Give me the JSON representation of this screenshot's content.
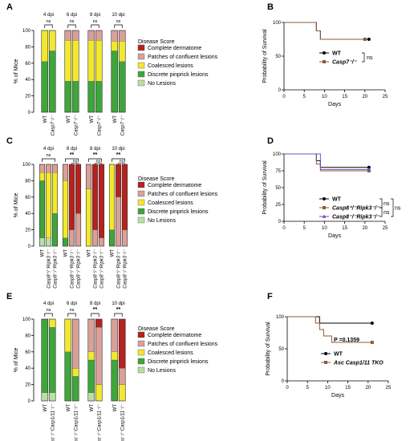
{
  "figure": {
    "panel_labels": [
      "A",
      "B",
      "C",
      "D",
      "E",
      "F"
    ]
  },
  "colors": {
    "No Lesions": "#b8e0a8",
    "Discrete pinprick lesions": "#3ea63a",
    "Coalesced lesions": "#f2e82e",
    "Patches of confluent lesions": "#d9a09a",
    "Complete dermatome": "#b5221f",
    "wt_line": "#000000",
    "ko_line": "#8b5a3c",
    "ripk3_line": "#6a4fc8"
  },
  "chart_data": [
    {
      "type": "bar",
      "panel": "A",
      "stacked": true,
      "ylabel": "% of Mice",
      "ylim": [
        0,
        100
      ],
      "yticks": [
        0,
        20,
        40,
        60,
        80,
        100
      ],
      "legend_title": "Disease Score",
      "legend": [
        "Complete dermatome",
        "Patches of confluent lesions",
        "Coalesced lesions",
        "Discrete pinprick lesions",
        "No Lesions"
      ],
      "groups": [
        {
          "label": "4 dpi",
          "sig": "ns",
          "bars": [
            {
              "label": "WT",
              "segments": {
                "No Lesions": 0,
                "Discrete pinprick lesions": 62,
                "Coalesced lesions": 38,
                "Patches of confluent lesions": 0,
                "Complete dermatome": 0
              }
            },
            {
              "label": "Casp7⁻/⁻",
              "segments": {
                "No Lesions": 0,
                "Discrete pinprick lesions": 75,
                "Coalesced lesions": 25,
                "Patches of confluent lesions": 0,
                "Complete dermatome": 0
              }
            }
          ]
        },
        {
          "label": "6 dpi",
          "sig": "ns",
          "bars": [
            {
              "label": "WT",
              "segments": {
                "No Lesions": 0,
                "Discrete pinprick lesions": 38,
                "Coalesced lesions": 50,
                "Patches of confluent lesions": 12,
                "Complete dermatome": 0
              }
            },
            {
              "label": "Casp7⁻/⁻",
              "segments": {
                "No Lesions": 0,
                "Discrete pinprick lesions": 38,
                "Coalesced lesions": 50,
                "Patches of confluent lesions": 12,
                "Complete dermatome": 0
              }
            }
          ]
        },
        {
          "label": "8 dpi",
          "sig": "ns",
          "bars": [
            {
              "label": "WT",
              "segments": {
                "No Lesions": 0,
                "Discrete pinprick lesions": 38,
                "Coalesced lesions": 50,
                "Patches of confluent lesions": 12,
                "Complete dermatome": 0
              }
            },
            {
              "label": "Casp7⁻/⁻",
              "segments": {
                "No Lesions": 0,
                "Discrete pinprick lesions": 38,
                "Coalesced lesions": 50,
                "Patches of confluent lesions": 12,
                "Complete dermatome": 0
              }
            }
          ]
        },
        {
          "label": "10 dpi",
          "sig": "ns",
          "bars": [
            {
              "label": "WT",
              "segments": {
                "No Lesions": 0,
                "Discrete pinprick lesions": 75,
                "Coalesced lesions": 12,
                "Patches of confluent lesions": 13,
                "Complete dermatome": 0
              }
            },
            {
              "label": "Casp7⁻/⁻",
              "segments": {
                "No Lesions": 0,
                "Discrete pinprick lesions": 62,
                "Coalesced lesions": 25,
                "Patches of confluent lesions": 13,
                "Complete dermatome": 0
              }
            }
          ]
        }
      ]
    },
    {
      "type": "line",
      "panel": "B",
      "step": true,
      "xlabel": "Days",
      "ylabel": "Probability of Survival",
      "xlim": [
        0,
        25
      ],
      "ylim": [
        0,
        100
      ],
      "xticks": [
        0,
        5,
        10,
        15,
        20,
        25
      ],
      "yticks": [
        0,
        50,
        100
      ],
      "legend_location": "center-right",
      "sig": "ns",
      "series": [
        {
          "name": "WT",
          "color_key": "wt_line",
          "marker": "circle",
          "x": [
            0,
            8,
            9,
            21
          ],
          "y": [
            100,
            87.5,
            75,
            75
          ]
        },
        {
          "name": "Casp7⁻/⁻",
          "color_key": "ko_line",
          "marker": "square",
          "x": [
            0,
            8,
            9,
            20
          ],
          "y": [
            100,
            87.5,
            75,
            75
          ]
        }
      ]
    },
    {
      "type": "bar",
      "panel": "C",
      "stacked": true,
      "ylabel": "% of Mice",
      "ylim": [
        0,
        100
      ],
      "yticks": [
        0,
        20,
        40,
        60,
        80,
        100
      ],
      "legend_title": "Disease Score",
      "legend": [
        "Complete dermatome",
        "Patches of confluent lesions",
        "Coalesced lesions",
        "Discrete pinprick lesions",
        "No Lesions"
      ],
      "groups": [
        {
          "label": "4 dpi",
          "sig": "ns",
          "bars": [
            {
              "label": "WT",
              "segments": {
                "No Lesions": 10,
                "Discrete pinprick lesions": 70,
                "Coalesced lesions": 10,
                "Patches of confluent lesions": 10,
                "Complete dermatome": 0
              }
            },
            {
              "label": "Casp8⁺/⁻Ripk3⁻/⁻",
              "segments": {
                "No Lesions": 10,
                "Discrete pinprick lesions": 0,
                "Coalesced lesions": 80,
                "Patches of confluent lesions": 10,
                "Complete dermatome": 0
              }
            },
            {
              "label": "Casp8⁻/⁻Ripk3⁻/⁻",
              "segments": {
                "No Lesions": 0,
                "Discrete pinprick lesions": 40,
                "Coalesced lesions": 50,
                "Patches of confluent lesions": 10,
                "Complete dermatome": 0
              }
            }
          ]
        },
        {
          "label": "6 dpi",
          "sig": "**",
          "sig2": "ns",
          "bars": [
            {
              "label": "WT",
              "segments": {
                "No Lesions": 0,
                "Discrete pinprick lesions": 10,
                "Coalesced lesions": 70,
                "Patches of confluent lesions": 20,
                "Complete dermatome": 0
              }
            },
            {
              "label": "Casp8⁺/⁻Ripk3⁻/⁻",
              "segments": {
                "No Lesions": 0,
                "Discrete pinprick lesions": 0,
                "Coalesced lesions": 0,
                "Patches of confluent lesions": 20,
                "Complete dermatome": 80
              }
            },
            {
              "label": "Casp8⁻/⁻Ripk3⁻/⁻",
              "segments": {
                "No Lesions": 0,
                "Discrete pinprick lesions": 0,
                "Coalesced lesions": 0,
                "Patches of confluent lesions": 40,
                "Complete dermatome": 60
              }
            }
          ]
        },
        {
          "label": "8 dpi",
          "sig": "**",
          "sig2": "ns",
          "bars": [
            {
              "label": "WT",
              "segments": {
                "No Lesions": 0,
                "Discrete pinprick lesions": 0,
                "Coalesced lesions": 70,
                "Patches of confluent lesions": 30,
                "Complete dermatome": 0
              }
            },
            {
              "label": "Casp8⁺/⁻Ripk3⁻/⁻",
              "segments": {
                "No Lesions": 0,
                "Discrete pinprick lesions": 0,
                "Coalesced lesions": 0,
                "Patches of confluent lesions": 20,
                "Complete dermatome": 80
              }
            },
            {
              "label": "Casp8⁻/⁻Ripk3⁻/⁻",
              "segments": {
                "No Lesions": 0,
                "Discrete pinprick lesions": 0,
                "Coalesced lesions": 0,
                "Patches of confluent lesions": 10,
                "Complete dermatome": 90
              }
            }
          ]
        },
        {
          "label": "10 dpi",
          "sig": "**",
          "sig2": "ns",
          "bars": [
            {
              "label": "WT",
              "segments": {
                "No Lesions": 0,
                "Discrete pinprick lesions": 20,
                "Coalesced lesions": 80,
                "Patches of confluent lesions": 0,
                "Complete dermatome": 0
              }
            },
            {
              "label": "Casp8⁺/⁻Ripk3⁻/⁻",
              "segments": {
                "No Lesions": 0,
                "Discrete pinprick lesions": 0,
                "Coalesced lesions": 0,
                "Patches of confluent lesions": 60,
                "Complete dermatome": 40
              }
            },
            {
              "label": "Casp8⁻/⁻Ripk3⁻/⁻",
              "segments": {
                "No Lesions": 0,
                "Discrete pinprick lesions": 0,
                "Coalesced lesions": 0,
                "Patches of confluent lesions": 20,
                "Complete dermatome": 80
              }
            }
          ]
        }
      ]
    },
    {
      "type": "line",
      "panel": "D",
      "step": true,
      "xlabel": "Days",
      "ylabel": "Probability of Survival",
      "xlim": [
        0,
        25
      ],
      "ylim": [
        0,
        100
      ],
      "xticks": [
        0,
        5,
        10,
        15,
        20,
        25
      ],
      "yticks": [
        0,
        25,
        50,
        75,
        100
      ],
      "legend_location": "bottom-right",
      "sig": [
        "ns",
        "ns",
        "ns"
      ],
      "series": [
        {
          "name": "WT",
          "color_key": "wt_line",
          "marker": "circle",
          "x": [
            0,
            8,
            9,
            21
          ],
          "y": [
            100,
            90,
            80,
            80
          ]
        },
        {
          "name": "Casp8⁺/⁻Ripk3⁻/⁻",
          "color_key": "ko_line",
          "marker": "square",
          "x": [
            0,
            8,
            9,
            21
          ],
          "y": [
            100,
            85,
            75,
            75
          ]
        },
        {
          "name": "Casp8⁻/⁻Ripk3⁻/⁻",
          "color_key": "ripk3_line",
          "marker": "triangle",
          "x": [
            0,
            9,
            21
          ],
          "y": [
            100,
            77,
            77
          ]
        }
      ]
    },
    {
      "type": "bar",
      "panel": "E",
      "stacked": true,
      "ylabel": "% of Mice",
      "ylim": [
        0,
        100
      ],
      "yticks": [
        0,
        20,
        40,
        60,
        80,
        100
      ],
      "legend_title": "Disease Score",
      "legend": [
        "Complete dermatome",
        "Patches of confluent lesions",
        "Coalesced lesions",
        "Discrete pinprick lesions",
        "No Lesions"
      ],
      "groups": [
        {
          "label": "4 dpi",
          "sig": "ns",
          "bars": [
            {
              "label": "WT",
              "segments": {
                "No Lesions": 10,
                "Discrete pinprick lesions": 90,
                "Coalesced lesions": 0,
                "Patches of confluent lesions": 0,
                "Complete dermatome": 0
              }
            },
            {
              "label": "Asc⁻/⁻Casp1/11⁻/⁻",
              "segments": {
                "No Lesions": 10,
                "Discrete pinprick lesions": 80,
                "Coalesced lesions": 10,
                "Patches of confluent lesions": 0,
                "Complete dermatome": 0
              }
            }
          ]
        },
        {
          "label": "6 dpi",
          "sig": "ns",
          "bars": [
            {
              "label": "WT",
              "segments": {
                "No Lesions": 0,
                "Discrete pinprick lesions": 60,
                "Coalesced lesions": 40,
                "Patches of confluent lesions": 0,
                "Complete dermatome": 0
              }
            },
            {
              "label": "Asc⁻/⁻Casp1/11⁻/⁻",
              "segments": {
                "No Lesions": 0,
                "Discrete pinprick lesions": 30,
                "Coalesced lesions": 10,
                "Patches of confluent lesions": 60,
                "Complete dermatome": 0
              }
            }
          ]
        },
        {
          "label": "8 dpi",
          "sig": "**",
          "bars": [
            {
              "label": "WT",
              "segments": {
                "No Lesions": 10,
                "Discrete pinprick lesions": 40,
                "Coalesced lesions": 10,
                "Patches of confluent lesions": 40,
                "Complete dermatome": 0
              }
            },
            {
              "label": "Asc⁻/⁻Casp1/11⁻/⁻",
              "segments": {
                "No Lesions": 0,
                "Discrete pinprick lesions": 0,
                "Coalesced lesions": 20,
                "Patches of confluent lesions": 70,
                "Complete dermatome": 10
              }
            }
          ]
        },
        {
          "label": "10 dpi",
          "sig": "**",
          "bars": [
            {
              "label": "WT",
              "segments": {
                "No Lesions": 0,
                "Discrete pinprick lesions": 50,
                "Coalesced lesions": 10,
                "Patches of confluent lesions": 40,
                "Complete dermatome": 0
              }
            },
            {
              "label": "Asc⁻/⁻Casp1/11⁻/⁻",
              "segments": {
                "No Lesions": 0,
                "Discrete pinprick lesions": 0,
                "Coalesced lesions": 20,
                "Patches of confluent lesions": 20,
                "Complete dermatome": 60
              }
            }
          ]
        }
      ]
    },
    {
      "type": "line",
      "panel": "F",
      "step": true,
      "xlabel": "Days",
      "ylabel": "Probability of Survival",
      "xlim": [
        0,
        25
      ],
      "ylim": [
        0,
        100
      ],
      "xticks": [
        0,
        5,
        10,
        15,
        20,
        25
      ],
      "yticks": [
        0,
        50,
        100
      ],
      "legend_location": "bottom-right",
      "pvalue_label": "P =0.1359",
      "series": [
        {
          "name": "WT",
          "color_key": "wt_line",
          "marker": "circle",
          "x": [
            0,
            8,
            9,
            21
          ],
          "y": [
            100,
            90,
            90,
            90
          ]
        },
        {
          "name": "Asc Casp1/11 TKO",
          "color_key": "ko_line",
          "marker": "square",
          "x": [
            0,
            7,
            8,
            9,
            11,
            21
          ],
          "y": [
            100,
            90,
            80,
            70,
            60,
            60
          ]
        }
      ]
    }
  ]
}
